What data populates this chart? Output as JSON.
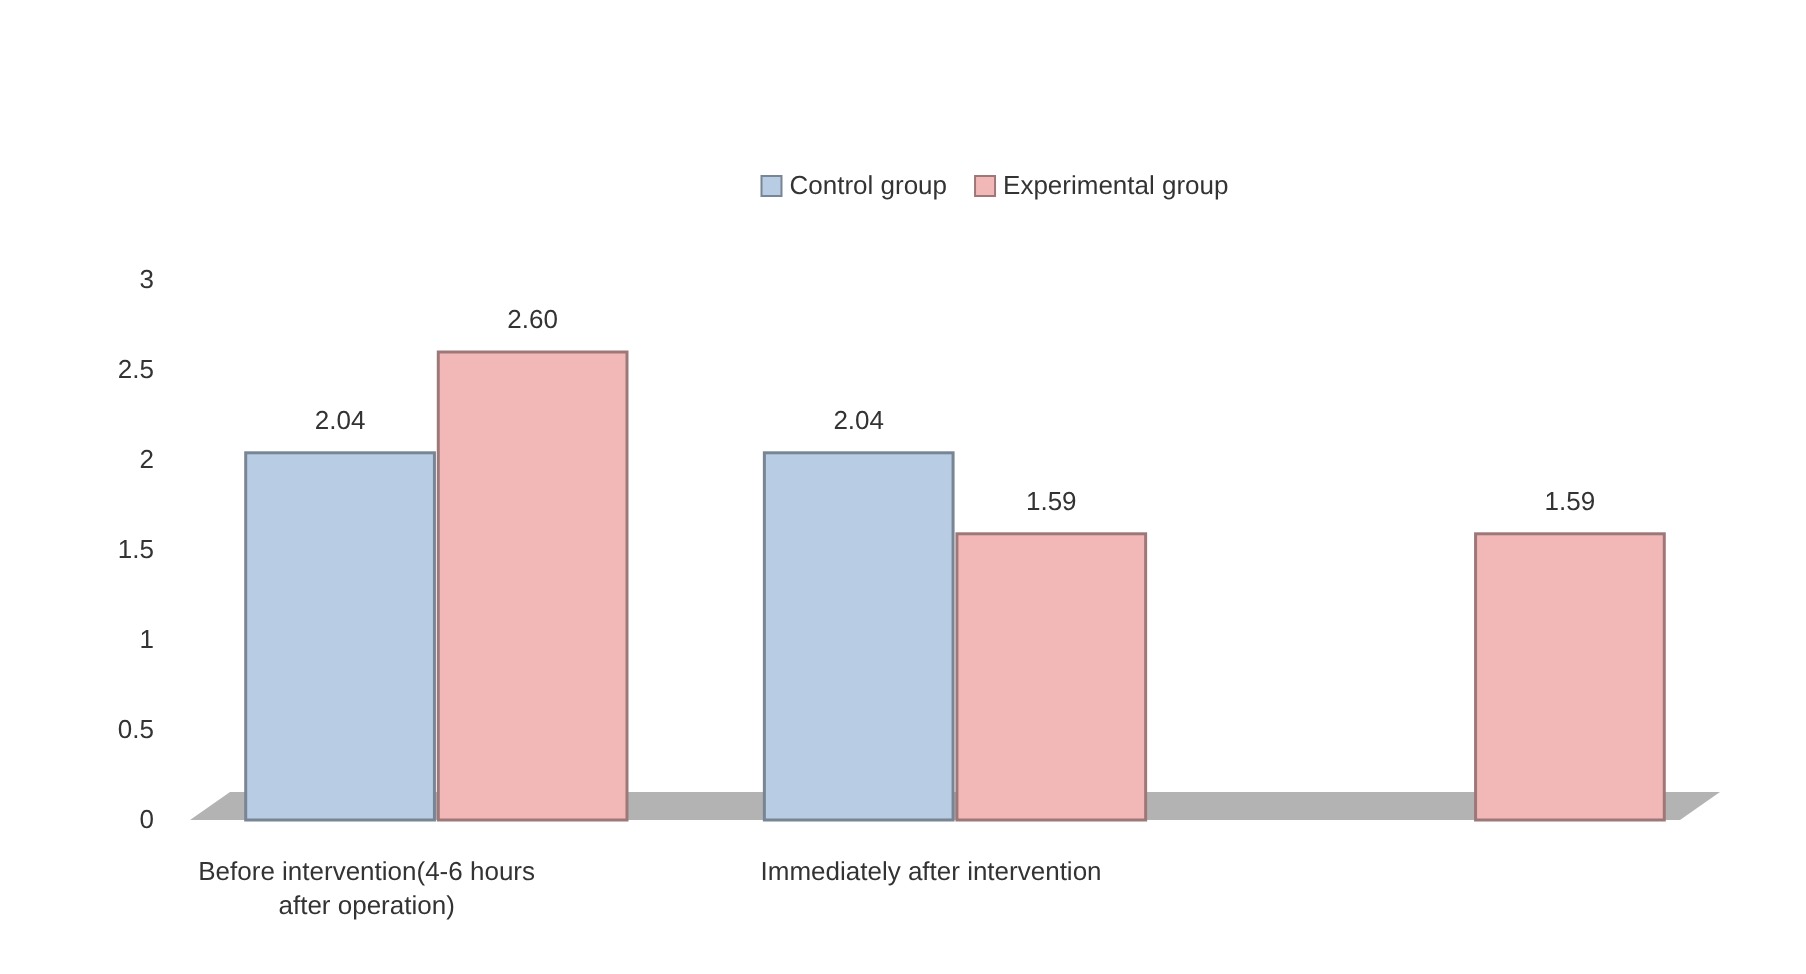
{
  "chart_data": {
    "type": "bar",
    "categories": [
      "Before intervention(4-6 hours after operation)",
      "Immediately after intervention",
      null
    ],
    "series": [
      {
        "name": "Control group",
        "color": "#b8cce4",
        "values": [
          2.04,
          2.04,
          null
        ],
        "value_labels": [
          "2.04",
          "2.04",
          null
        ]
      },
      {
        "name": "Experimental group",
        "color": "#f2b8b8",
        "values": [
          2.6,
          1.59,
          1.59
        ],
        "value_labels": [
          "2.60",
          "1.59",
          "1.59"
        ]
      }
    ],
    "ylim": [
      0,
      3
    ],
    "yticks": [
      0,
      0.5,
      1,
      1.5,
      2,
      2.5,
      3
    ],
    "grid": false,
    "legend": "top"
  }
}
